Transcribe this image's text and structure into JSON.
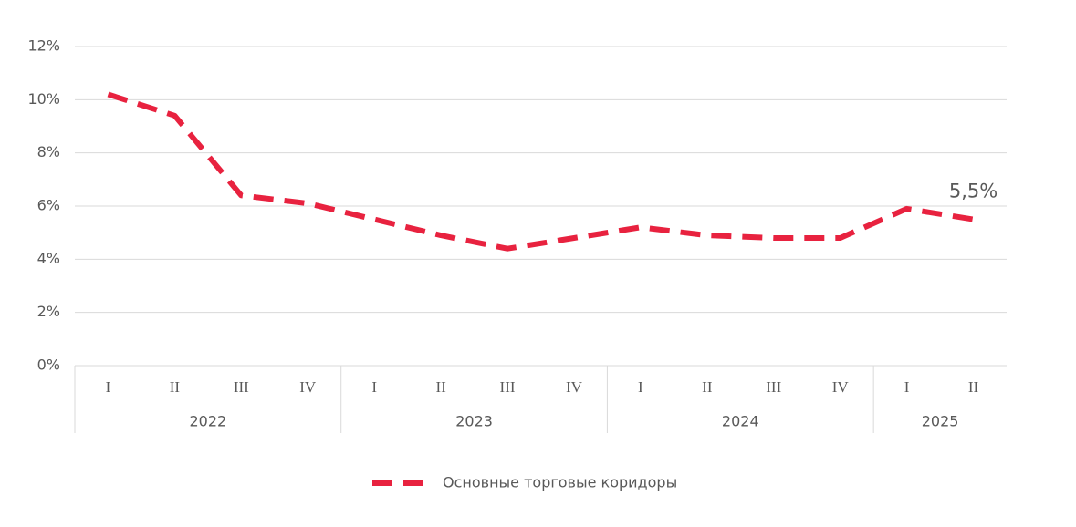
{
  "chart_data": {
    "type": "line",
    "groups": [
      {
        "label": "2022",
        "categories": [
          "I",
          "II",
          "III",
          "IV"
        ]
      },
      {
        "label": "2023",
        "categories": [
          "I",
          "II",
          "III",
          "IV"
        ]
      },
      {
        "label": "2024",
        "categories": [
          "I",
          "II",
          "III",
          "IV"
        ]
      },
      {
        "label": "2025",
        "categories": [
          "I",
          "II"
        ]
      }
    ],
    "series": [
      {
        "name": "Основные торговые коридоры",
        "color": "#e8223f",
        "values": [
          10.2,
          9.4,
          6.4,
          6.1,
          5.5,
          4.9,
          4.4,
          4.8,
          5.2,
          4.9,
          4.8,
          4.8,
          5.9,
          5.5
        ],
        "value_labels": [
          null,
          null,
          null,
          null,
          null,
          null,
          null,
          null,
          null,
          null,
          null,
          null,
          null,
          "5,5%"
        ]
      }
    ],
    "ylim": [
      0,
      12
    ],
    "yticks": [
      {
        "value": 0,
        "label": "0%"
      },
      {
        "value": 2,
        "label": "2%"
      },
      {
        "value": 4,
        "label": "4%"
      },
      {
        "value": 6,
        "label": "6%"
      },
      {
        "value": 8,
        "label": "8%"
      },
      {
        "value": 10,
        "label": "10%"
      },
      {
        "value": 12,
        "label": "12%"
      }
    ],
    "grid": true,
    "legend": "bottom"
  }
}
